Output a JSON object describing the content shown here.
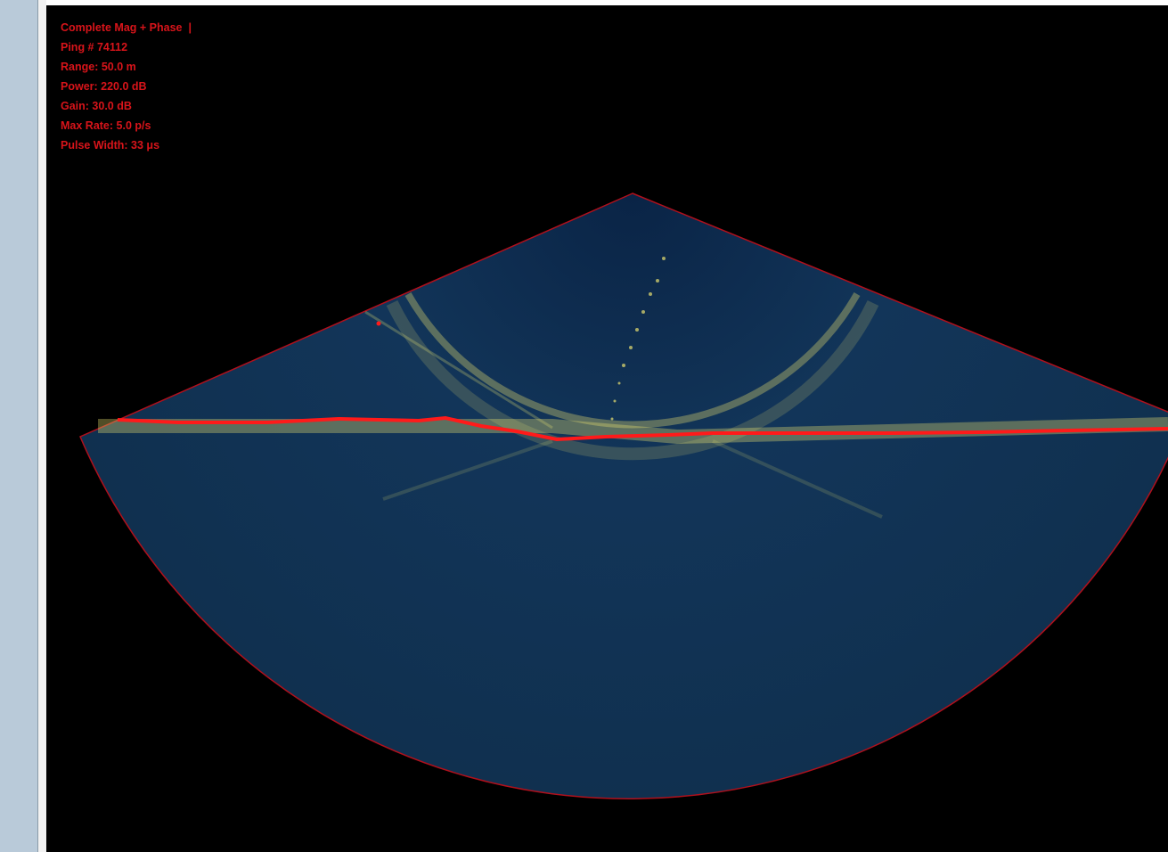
{
  "panel": {
    "lines": [
      "Complete Mag + Phase  |",
      "Ping # 74112",
      "Range: 50.0 m",
      "Power: 220.0 dB",
      "Gain: 30.0 dB",
      "Max Rate: 5.0 p/s",
      "Pulse Width: 33 μs"
    ]
  }
}
